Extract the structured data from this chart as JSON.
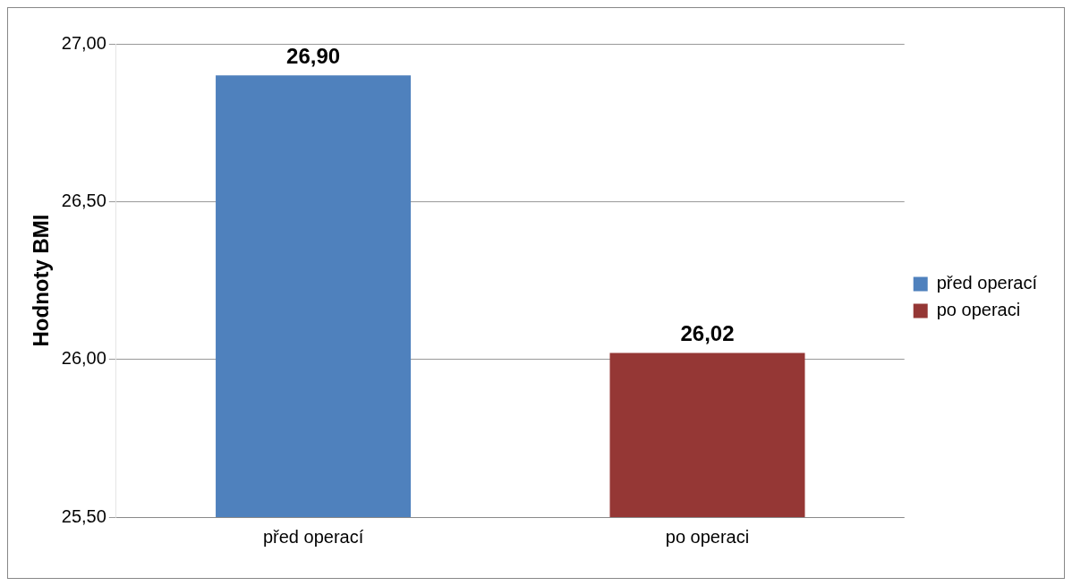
{
  "chart_data": {
    "type": "bar",
    "ylabel": "Hodnoty BMI",
    "categories": [
      "před operací",
      "po operaci"
    ],
    "series": [
      {
        "name": "před operací",
        "color": "#4f81bd",
        "values": [
          26.9,
          null
        ],
        "value_labels": [
          "26,90",
          null
        ]
      },
      {
        "name": "po operaci",
        "color": "#953735",
        "values": [
          null,
          26.02
        ],
        "value_labels": [
          null,
          "26,02"
        ]
      }
    ],
    "ylim": [
      25.5,
      27
    ],
    "yticks": [
      {
        "value": 25.5,
        "label": "25,50"
      },
      {
        "value": 26,
        "label": "26,00"
      },
      {
        "value": 26.5,
        "label": "26,50"
      },
      {
        "value": 27,
        "label": "27,00"
      }
    ],
    "grid": "y",
    "legend": "right"
  }
}
